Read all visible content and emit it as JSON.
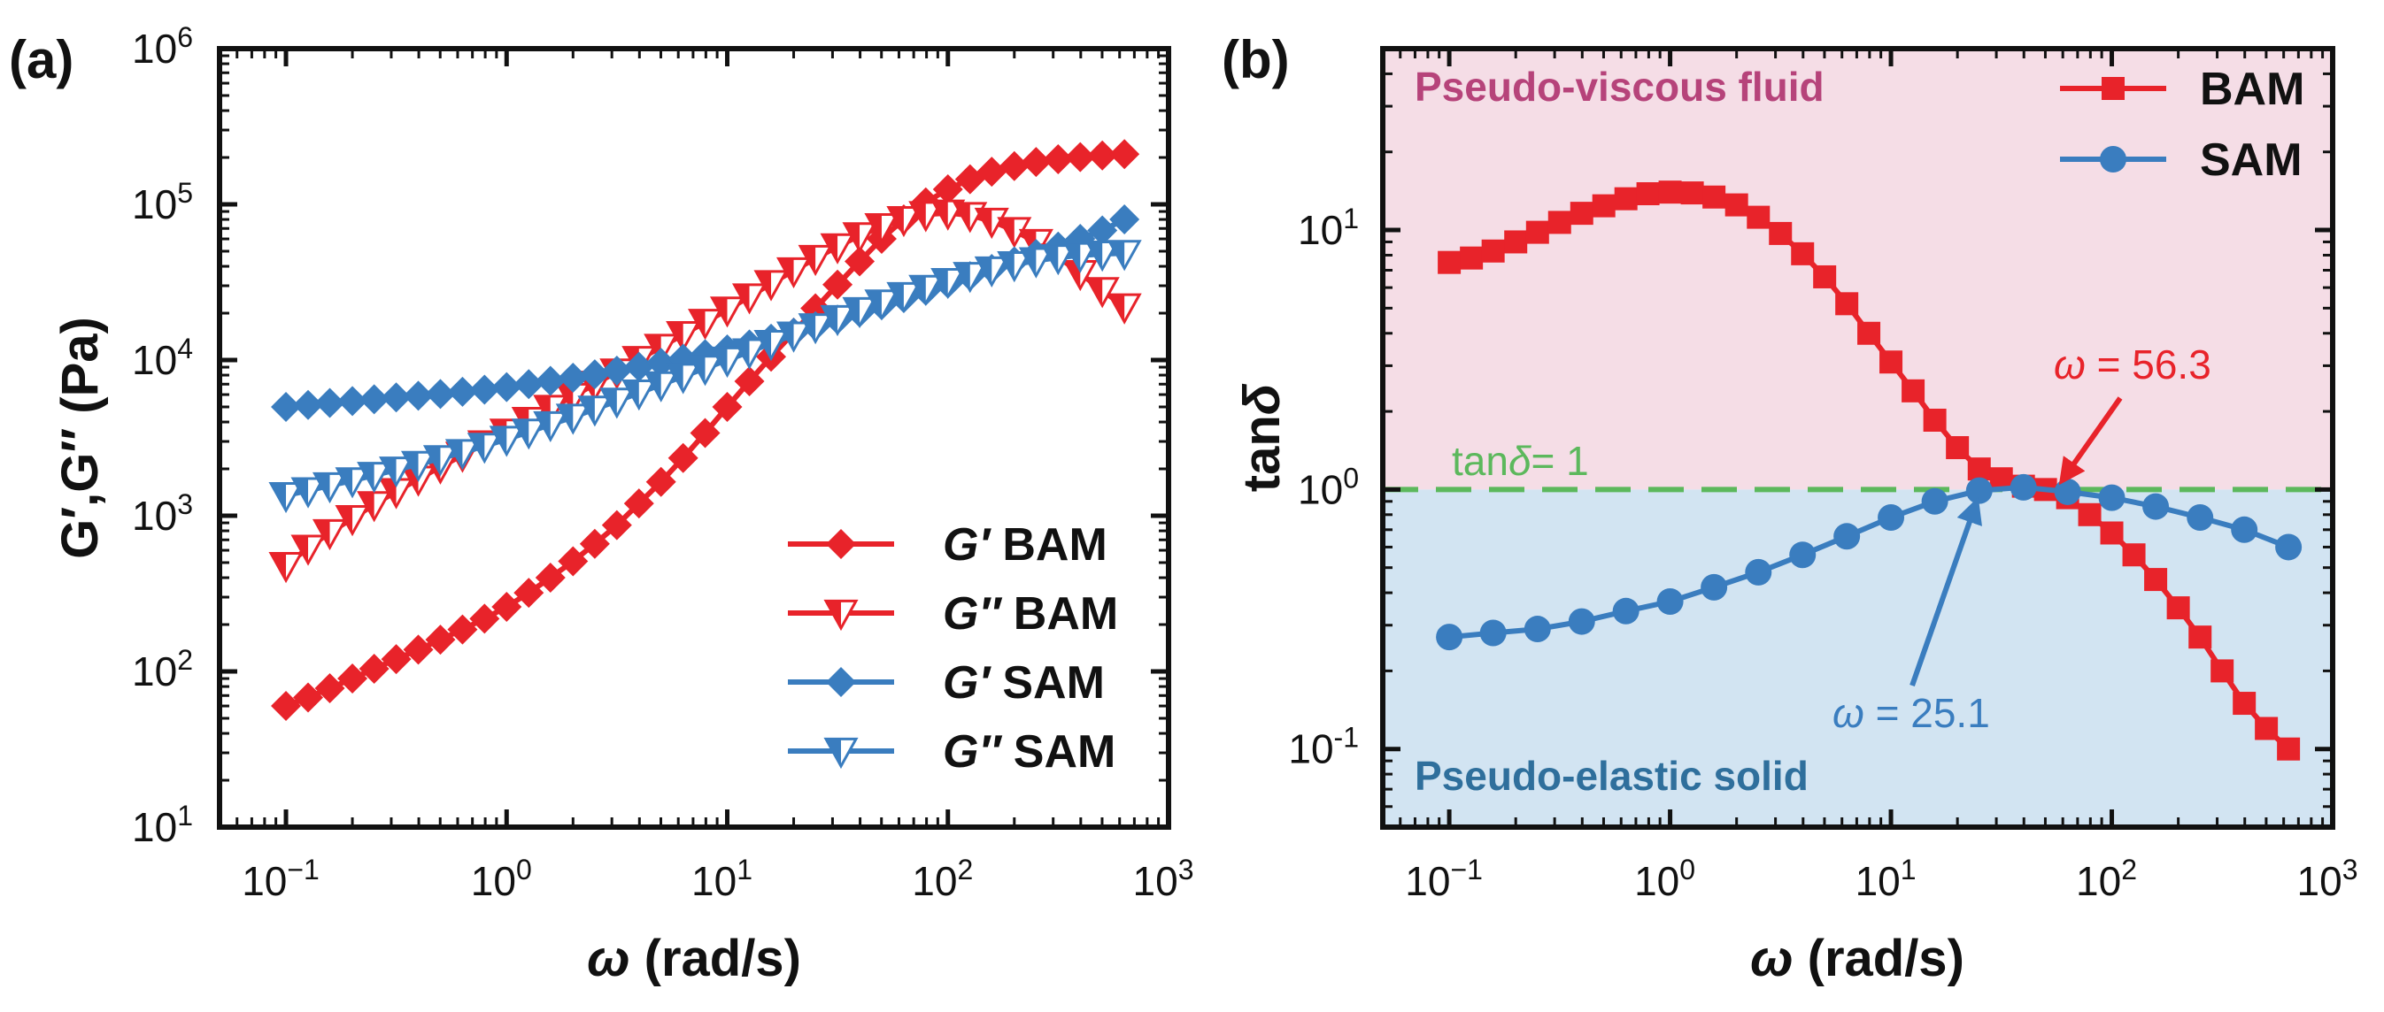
{
  "colors": {
    "bam": "#e8232a",
    "sam": "#3a7dbf",
    "ref": "#5cb85c",
    "fluid_bg": "#f5dde6",
    "solid_bg": "#d2e4f2",
    "fluid_text": "#b6437a",
    "solid_text": "#2f6f9c"
  },
  "chart_data": [
    {
      "panel": "(a)",
      "type": "line",
      "xscale": "log",
      "yscale": "log",
      "xlim": [
        0.05,
        1000
      ],
      "ylim": [
        10,
        1000000
      ],
      "xlabel_symbol": "ω",
      "xlabel_unit": "(rad/s)",
      "ylabel": "G′,G″ (Pa)",
      "xticks": [
        {
          "base": "10",
          "exp": "−1"
        },
        {
          "base": "10",
          "exp": "0"
        },
        {
          "base": "10",
          "exp": "1"
        },
        {
          "base": "10",
          "exp": "2"
        },
        {
          "base": "10",
          "exp": "3"
        }
      ],
      "yticks": [
        {
          "base": "10",
          "exp": "1"
        },
        {
          "base": "10",
          "exp": "2"
        },
        {
          "base": "10",
          "exp": "3"
        },
        {
          "base": "10",
          "exp": "4"
        },
        {
          "base": "10",
          "exp": "5"
        },
        {
          "base": "10",
          "exp": "6"
        }
      ],
      "x": [
        0.1,
        0.126,
        0.158,
        0.2,
        0.251,
        0.316,
        0.398,
        0.501,
        0.631,
        0.794,
        1.0,
        1.26,
        1.58,
        2.0,
        2.51,
        3.16,
        3.98,
        5.01,
        6.31,
        7.94,
        10.0,
        12.6,
        15.8,
        20.0,
        25.1,
        31.6,
        39.8,
        50.1,
        63.1,
        79.4,
        100,
        126,
        158,
        200,
        251,
        316,
        398,
        501,
        631
      ],
      "legend_position": "bottom-right",
      "series": [
        {
          "name": "G′ BAM",
          "symbol": "G′",
          "label": "BAM",
          "color_key": "bam",
          "marker": "diamond",
          "values": [
            60,
            68,
            78,
            90,
            104,
            120,
            138,
            160,
            186,
            218,
            260,
            320,
            400,
            510,
            660,
            870,
            1200,
            1650,
            2350,
            3400,
            5000,
            7300,
            10500,
            15000,
            21500,
            30500,
            43000,
            60000,
            80000,
            103000,
            125000,
            145000,
            162000,
            176000,
            187000,
            195000,
            201000,
            206000,
            210000
          ]
        },
        {
          "name": "G″ BAM",
          "symbol": "G″",
          "label": "BAM",
          "color_key": "bam",
          "marker": "triangle-down-half",
          "values": [
            480,
            620,
            780,
            960,
            1180,
            1430,
            1720,
            2060,
            2450,
            2900,
            3450,
            4100,
            4900,
            5850,
            7000,
            8400,
            10100,
            12100,
            14600,
            17500,
            21000,
            25500,
            31000,
            37500,
            45000,
            53500,
            63000,
            72000,
            80000,
            86000,
            88000,
            85000,
            78000,
            68000,
            57000,
            46000,
            36000,
            28000,
            22000
          ]
        },
        {
          "name": "G′ SAM",
          "symbol": "G′",
          "label": "SAM",
          "color_key": "sam",
          "marker": "diamond",
          "values": [
            5000,
            5150,
            5300,
            5450,
            5600,
            5750,
            5900,
            6050,
            6250,
            6450,
            6700,
            7000,
            7350,
            7700,
            8100,
            8550,
            9050,
            9600,
            10200,
            10900,
            11700,
            12600,
            13700,
            15000,
            16500,
            18200,
            20200,
            22500,
            25000,
            27900,
            31000,
            34600,
            38500,
            43000,
            48000,
            53500,
            60000,
            68000,
            80000
          ]
        },
        {
          "name": "G″ SAM",
          "symbol": "G″",
          "label": "SAM",
          "color_key": "sam",
          "marker": "triangle-down-half",
          "values": [
            1350,
            1450,
            1560,
            1680,
            1820,
            1970,
            2140,
            2330,
            2550,
            2800,
            3100,
            3450,
            3850,
            4300,
            4850,
            5450,
            6150,
            6950,
            7850,
            8850,
            10000,
            11300,
            12800,
            14500,
            16400,
            18500,
            20800,
            23300,
            26000,
            28900,
            32000,
            35000,
            38000,
            41000,
            43500,
            45500,
            47000,
            48000,
            48500
          ]
        }
      ]
    },
    {
      "panel": "(b)",
      "type": "line",
      "xscale": "log",
      "yscale": "log",
      "xlim": [
        0.05,
        1000
      ],
      "ylim": [
        0.05,
        50
      ],
      "xlabel_symbol": "ω",
      "xlabel_unit": "(rad/s)",
      "ylabel_prefix": "tan",
      "ylabel_symbol": "δ",
      "xticks": [
        {
          "base": "10",
          "exp": "−1"
        },
        {
          "base": "10",
          "exp": "0"
        },
        {
          "base": "10",
          "exp": "1"
        },
        {
          "base": "10",
          "exp": "2"
        },
        {
          "base": "10",
          "exp": "3"
        }
      ],
      "yticks": [
        {
          "base": "10",
          "exp": "-1"
        },
        {
          "base": "10",
          "exp": "0"
        },
        {
          "base": "10",
          "exp": "1"
        }
      ],
      "regions": {
        "upper": "Pseudo-viscous fluid",
        "lower": "Pseudo-elastic solid",
        "boundary": 1.0
      },
      "reference_line": {
        "y": 1.0,
        "label_prefix": "tan",
        "label_symbol": "δ",
        "label_suffix": "= 1"
      },
      "annotations": [
        {
          "prefix": "ω",
          "text": " = 56.3",
          "x": 56.3,
          "color_key": "bam"
        },
        {
          "prefix": "ω",
          "text": " = 25.1",
          "x": 25.1,
          "color_key": "sam"
        }
      ],
      "x_bam": [
        0.1,
        0.126,
        0.158,
        0.2,
        0.251,
        0.316,
        0.398,
        0.501,
        0.631,
        0.794,
        1.0,
        1.26,
        1.58,
        2.0,
        2.51,
        3.16,
        3.98,
        5.01,
        6.31,
        7.94,
        10.0,
        12.6,
        15.8,
        20.0,
        25.1,
        31.6,
        39.8,
        50.1,
        63.1,
        79.4,
        100,
        126,
        158,
        200,
        251,
        316,
        398,
        501,
        631
      ],
      "x_sam": [
        0.1,
        0.158,
        0.251,
        0.398,
        0.631,
        1.0,
        1.58,
        2.51,
        3.98,
        6.31,
        10.0,
        15.8,
        25.1,
        39.8,
        63.1,
        100,
        158,
        251,
        398,
        631
      ],
      "legend_position": "top-right",
      "series": [
        {
          "name": "BAM",
          "color_key": "bam",
          "marker": "square",
          "values": [
            7.5,
            7.8,
            8.3,
            9.0,
            9.8,
            10.7,
            11.6,
            12.4,
            13.2,
            13.8,
            14.0,
            13.9,
            13.4,
            12.5,
            11.2,
            9.7,
            8.1,
            6.6,
            5.2,
            4.0,
            3.1,
            2.4,
            1.85,
            1.45,
            1.2,
            1.1,
            1.03,
            1.0,
            0.93,
            0.8,
            0.68,
            0.56,
            0.45,
            0.35,
            0.27,
            0.2,
            0.15,
            0.12,
            0.1
          ]
        },
        {
          "name": "SAM",
          "color_key": "sam",
          "marker": "circle",
          "values": [
            0.27,
            0.28,
            0.29,
            0.31,
            0.34,
            0.37,
            0.42,
            0.48,
            0.56,
            0.66,
            0.78,
            0.9,
            0.99,
            1.02,
            0.98,
            0.93,
            0.86,
            0.78,
            0.7,
            0.6
          ]
        }
      ]
    }
  ]
}
